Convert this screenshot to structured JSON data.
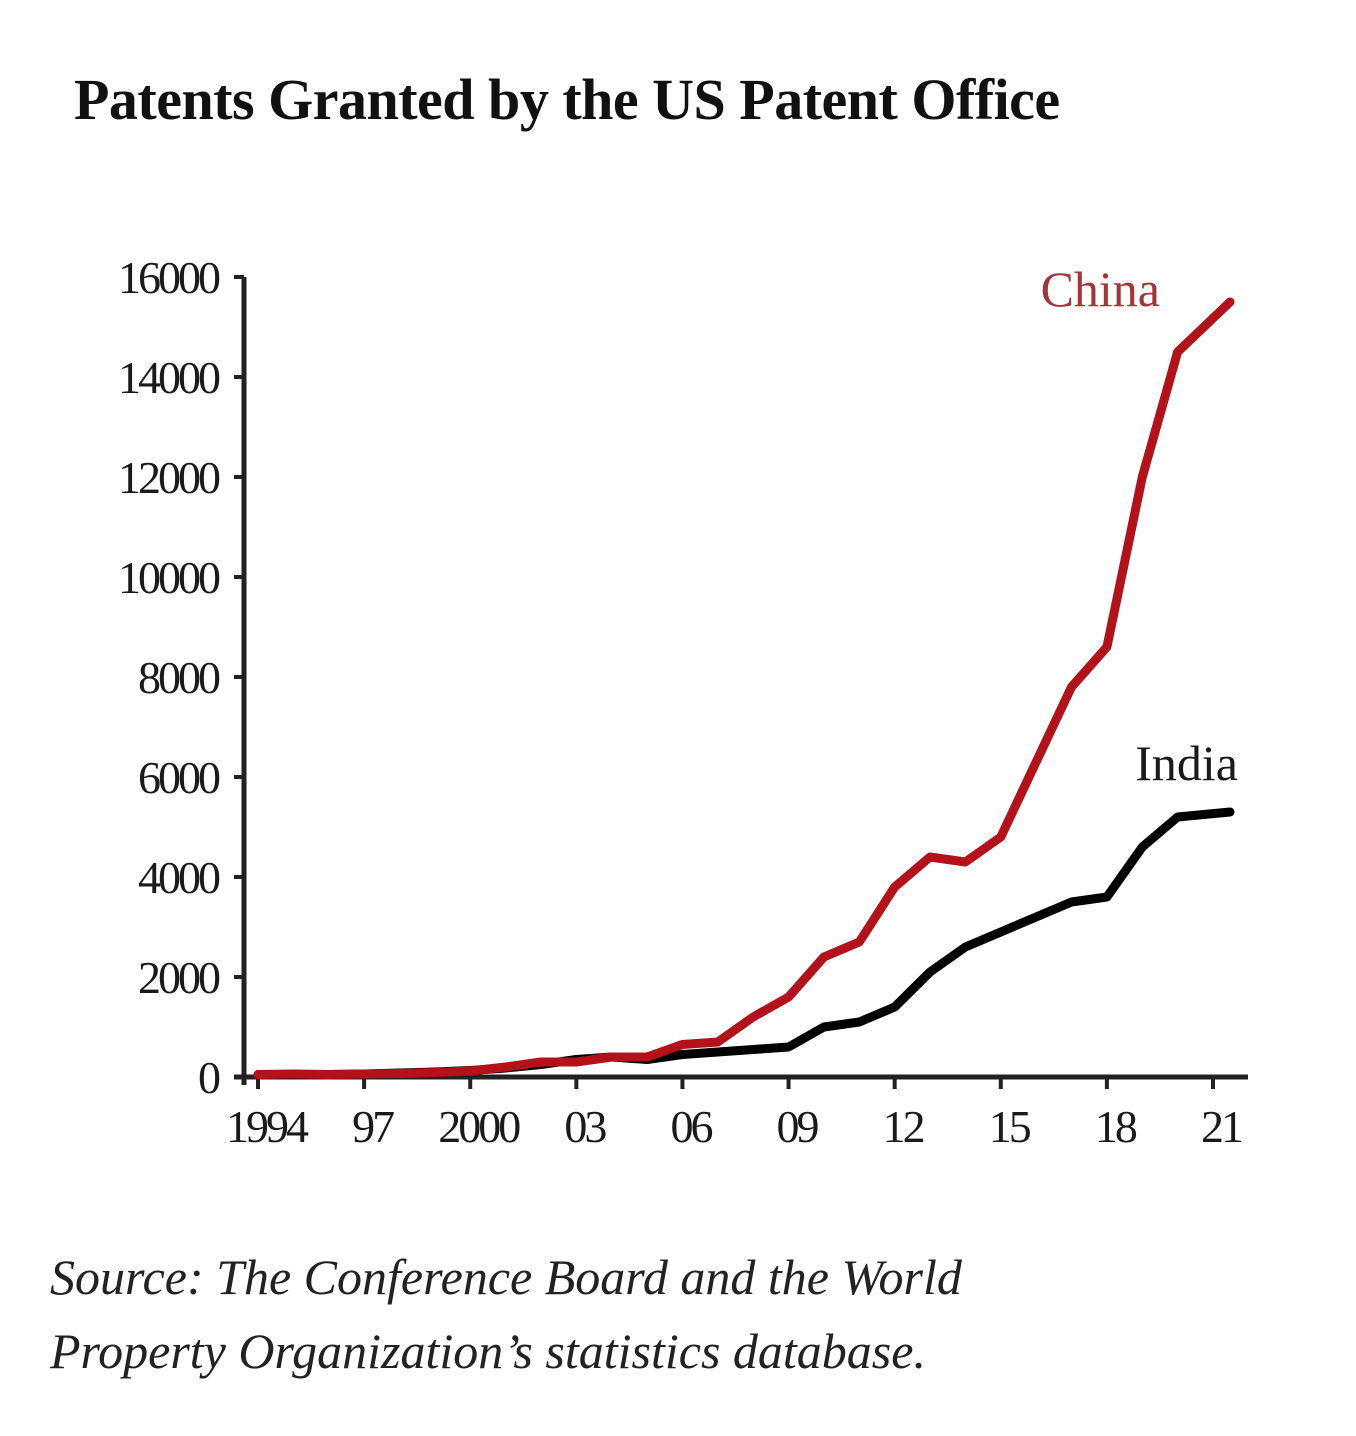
{
  "chart_data": {
    "type": "line",
    "title": "Patents Granted by the US Patent Office",
    "xlabel": "",
    "ylabel": "",
    "x": [
      1994,
      1995,
      1996,
      1997,
      1998,
      1999,
      2000,
      2001,
      2002,
      2003,
      2004,
      2005,
      2006,
      2007,
      2008,
      2009,
      2010,
      2011,
      2012,
      2013,
      2014,
      2015,
      2016,
      2017,
      2018,
      2019,
      2020,
      2021
    ],
    "xlim": [
      1994,
      2021.5
    ],
    "ylim": [
      0,
      16000
    ],
    "x_ticks": [
      1994,
      1997,
      2000,
      2003,
      2006,
      2009,
      2012,
      2015,
      2018,
      2021
    ],
    "x_tick_labels": [
      "1994",
      "97",
      "2000",
      "03",
      "06",
      "09",
      "12",
      "15",
      "18",
      "21"
    ],
    "y_ticks": [
      0,
      2000,
      4000,
      6000,
      8000,
      10000,
      12000,
      14000,
      16000
    ],
    "y_tick_labels": [
      "0",
      "2000",
      "4000",
      "6000",
      "8000",
      "10000",
      "12000",
      "14000",
      "16000"
    ],
    "grid": false,
    "legend": "inline labels at line ends (top-right)",
    "series": [
      {
        "name": "China",
        "color": "#b3121b",
        "label_color": "#a3343a",
        "values": [
          50,
          60,
          50,
          60,
          70,
          90,
          120,
          200,
          300,
          300,
          400,
          400,
          650,
          700,
          1200,
          1600,
          2400,
          2700,
          3800,
          4400,
          4300,
          4800,
          6300,
          7800,
          8600,
          12000,
          14500,
          15500
        ]
      },
      {
        "name": "India",
        "color": "#000000",
        "label_color": "#1a1a1a",
        "values": [
          50,
          50,
          50,
          60,
          80,
          100,
          130,
          180,
          250,
          350,
          400,
          350,
          450,
          500,
          550,
          600,
          1000,
          1100,
          1400,
          2100,
          2600,
          2900,
          3200,
          3500,
          3600,
          4600,
          5200,
          5300
        ]
      }
    ],
    "source": "Source: The Conference Board and the World Property Organization’s statistics database."
  },
  "source_lines": [
    "Source: The Conference Board and the World",
    "Property Organization’s statistics database."
  ]
}
